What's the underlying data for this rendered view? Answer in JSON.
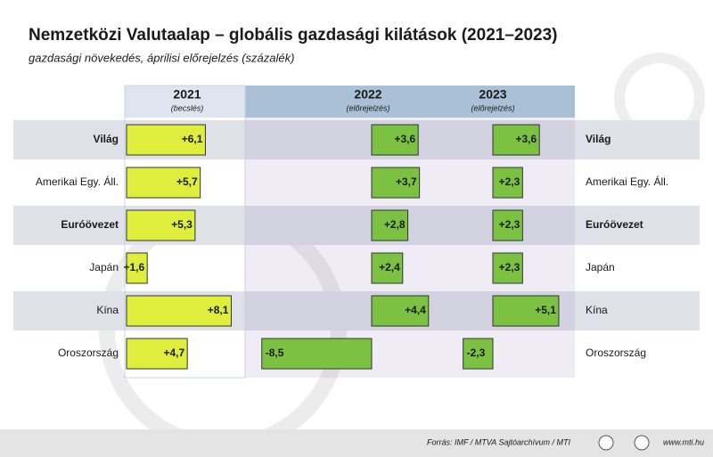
{
  "chart_data": {
    "type": "bar",
    "title": "Nemzetközi Valutaalap – globális gazdasági kilátások (2021–2023)",
    "subtitle": "gazdasági növekedés, áprilisi előrejelzés (százalék)",
    "categories": [
      "Világ",
      "Amerikai Egy. Áll.",
      "Euróövezet",
      "Japán",
      "Kína",
      "Oroszország"
    ],
    "bold_rows": [
      0,
      2
    ],
    "shaded_rows": [
      0,
      2,
      4
    ],
    "series": [
      {
        "name": "2021",
        "note": "(becslés)",
        "color": "#dfee3c",
        "values": [
          6.1,
          5.7,
          5.3,
          1.6,
          8.1,
          4.7
        ],
        "value_labels": [
          "+6,1",
          "+5,7",
          "+5,3",
          "+1,6",
          "+8,1",
          "+4,7"
        ]
      },
      {
        "name": "2022",
        "note": "(előrejelzés)",
        "color": "#7cc242",
        "values": [
          3.6,
          3.7,
          2.8,
          2.4,
          4.4,
          -8.5
        ],
        "value_labels": [
          "+3,6",
          "+3,7",
          "+2,8",
          "+2,4",
          "+4,4",
          "-8,5"
        ]
      },
      {
        "name": "2023",
        "note": "(előrejelzés)",
        "color": "#7cc242",
        "values": [
          3.6,
          2.3,
          2.3,
          2.3,
          5.1,
          -2.3
        ],
        "value_labels": [
          "+3,6",
          "+2,3",
          "+2,3",
          "+2,3",
          "+5,1",
          "-2,3"
        ]
      }
    ],
    "source": "Forrás: IMF / MTVA Sajtóarchívum / MTI",
    "website": "www.mti.hu"
  }
}
